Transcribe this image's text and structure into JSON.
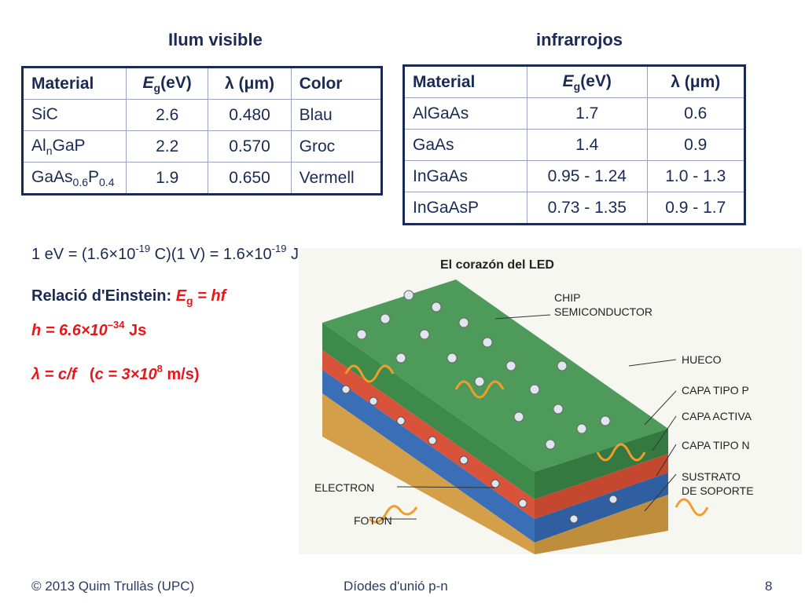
{
  "visible": {
    "title": "Ilum visible",
    "headers": {
      "material": "Material",
      "eg_E": "E",
      "eg_sub": "g",
      "eg_unit": "(eV)",
      "lambda": "λ (μm)",
      "color": "Color"
    },
    "rows": [
      {
        "mat_a": "SiC",
        "mat_sub1": "",
        "mat_b": "",
        "mat_sub2": "",
        "eg": "2.6",
        "lambda": "0.480",
        "color": "Blau"
      },
      {
        "mat_a": "Al",
        "mat_sub1": "n",
        "mat_b": "GaP",
        "mat_sub2": "",
        "eg": "2.2",
        "lambda": "0.570",
        "color": "Groc"
      },
      {
        "mat_a": "GaAs",
        "mat_sub1": "0.6",
        "mat_b": "P",
        "mat_sub2": "0.4",
        "eg": "1.9",
        "lambda": "0.650",
        "color": "Vermell"
      }
    ]
  },
  "infrared": {
    "title": "infrarrojos",
    "headers": {
      "material": "Material",
      "eg_E": "E",
      "eg_sub": "g",
      "eg_unit": "(eV)",
      "lambda": "λ (μm)"
    },
    "rows": [
      {
        "material": "AlGaAs",
        "eg": "1.7",
        "lambda": "0.6"
      },
      {
        "material": "GaAs",
        "eg": "1.4",
        "lambda": "0.9"
      },
      {
        "material": "InGaAs",
        "eg": "0.95 - 1.24",
        "lambda": "1.0 - 1.3"
      },
      {
        "material": "InGaAsP",
        "eg": "0.73 - 1.35",
        "lambda": "0.9 - 1.7"
      }
    ]
  },
  "equations": {
    "ev_a": "1 eV = (1.6×10",
    "ev_exp1": "-19",
    "ev_b": " C)(1 V) = 1.6×10",
    "ev_exp2": "-19",
    "ev_c": " J",
    "einstein_label": "Relació d'Einstein: ",
    "einstein_E": "E",
    "einstein_sub": "g",
    "einstein_rest": " = hf",
    "planck_a": "h = 6.6×10",
    "planck_exp": "–34",
    "planck_b": " Js",
    "lambda_a": "λ = c/f",
    "lambda_b": "   (",
    "lambda_c": "c = 3×10",
    "lambda_exp": "8",
    "lambda_d": " m/s)"
  },
  "diagram": {
    "title": "El corazón del LED",
    "labels": {
      "chip1": "CHIP",
      "chip2": "SEMICONDUCTOR",
      "hueco": "HUECO",
      "capa_p": "CAPA TIPO P",
      "capa_activa": "CAPA ACTIVA",
      "capa_n": "CAPA TIPO N",
      "sustrato1": "SUSTRATO",
      "sustrato2": "DE SOPORTE",
      "electron": "ELECTRON",
      "foton": "FOTON"
    },
    "colors": {
      "p_layer": "#3d8a4a",
      "active": "#d9533a",
      "n_layer": "#3a6fb8",
      "substrate": "#d3a049",
      "photon": "#f39c2a"
    }
  },
  "footer": {
    "copyright": "© 2013 Quim Trullàs (UPC)",
    "center": "Díodes d'unió p-n",
    "page": "8"
  }
}
